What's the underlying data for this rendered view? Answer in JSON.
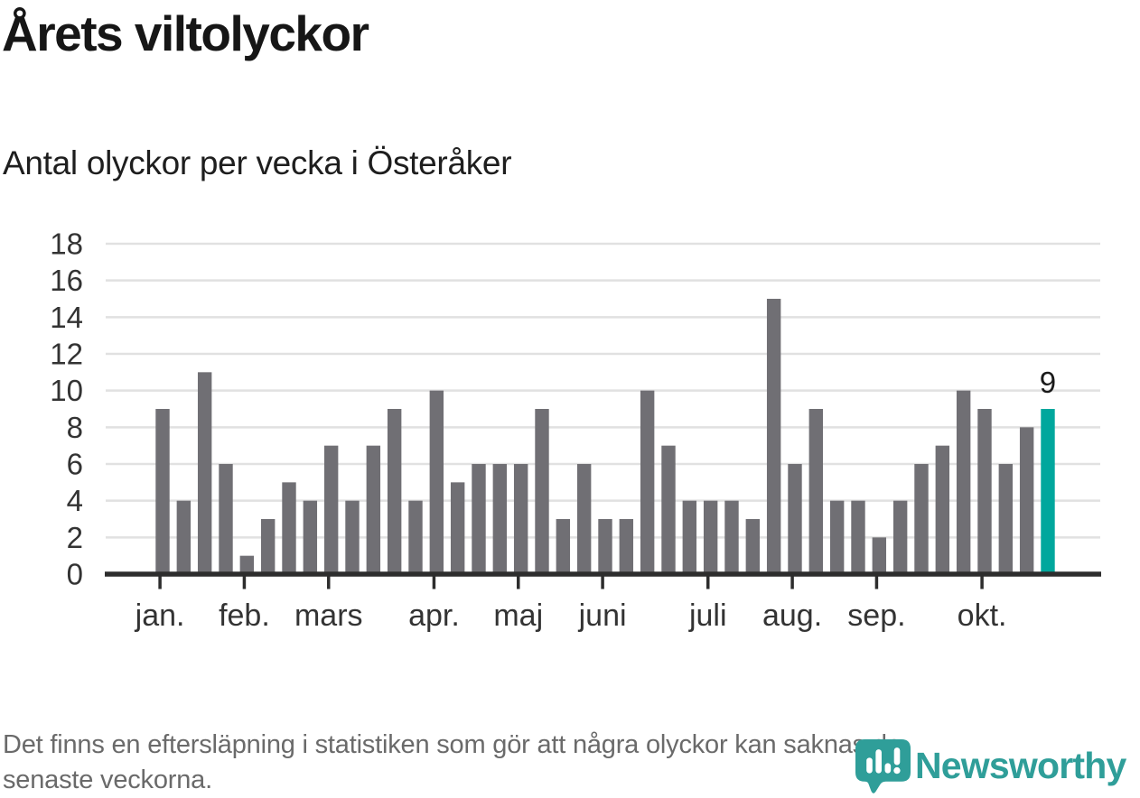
{
  "header": {
    "title": "Årets viltolyckor",
    "subtitle": "Antal olyckor per vecka i Österåker"
  },
  "chart_data": {
    "type": "bar",
    "title": "Årets viltolyckor",
    "subtitle": "Antal olyckor per vecka i Österåker",
    "x_unit": "vecka",
    "values": [
      9,
      4,
      11,
      6,
      1,
      3,
      5,
      4,
      7,
      4,
      7,
      9,
      4,
      10,
      5,
      6,
      6,
      6,
      9,
      3,
      6,
      3,
      3,
      10,
      7,
      4,
      4,
      4,
      3,
      15,
      6,
      9,
      4,
      4,
      2,
      4,
      6,
      7,
      10,
      9,
      6,
      8,
      9
    ],
    "highlight_index": 42,
    "highlight_label": "9",
    "y_ticks": [
      0,
      2,
      4,
      6,
      8,
      10,
      12,
      14,
      16,
      18
    ],
    "ylim": [
      0,
      18
    ],
    "grid": true,
    "legend": "none",
    "month_ticks": [
      {
        "label": "jan.",
        "week_index": 0
      },
      {
        "label": "feb.",
        "week_index": 4
      },
      {
        "label": "mars",
        "week_index": 8
      },
      {
        "label": "apr.",
        "week_index": 13
      },
      {
        "label": "maj",
        "week_index": 17
      },
      {
        "label": "juni",
        "week_index": 21
      },
      {
        "label": "juli",
        "week_index": 26
      },
      {
        "label": "aug.",
        "week_index": 30
      },
      {
        "label": "sep.",
        "week_index": 34
      },
      {
        "label": "okt.",
        "week_index": 39
      }
    ],
    "colors": {
      "bar": "#706f74",
      "highlight": "#00a79d",
      "grid": "#e1e1e1",
      "axis": "#2d2d2d",
      "tick_label": "#333333",
      "value_label": "#1a1a1a"
    }
  },
  "footer": {
    "note_lines": [
      "Det finns en eftersläpning i statistiken som gör att några olyckor kan saknas de",
      "senaste veckorna."
    ]
  },
  "logo": {
    "wordmark": "Newsworthy",
    "icon": "newsworthy-speech-bubble-chart-icon",
    "color": "#2f9e99"
  }
}
